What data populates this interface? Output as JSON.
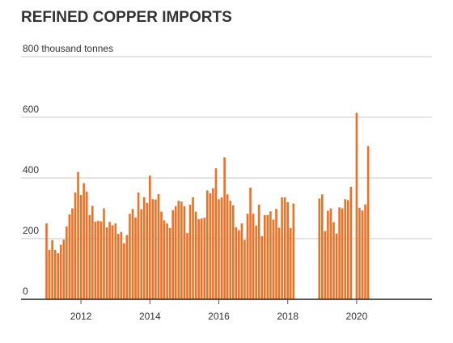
{
  "chart_data": {
    "type": "bar",
    "title": "REFINED COPPER IMPORTS",
    "ylabel": "thousand tonnes",
    "ylim": [
      0,
      800
    ],
    "yticks": [
      {
        "value": 0,
        "label": "0"
      },
      {
        "value": 200,
        "label": "200"
      },
      {
        "value": 400,
        "label": "400"
      },
      {
        "value": 600,
        "label": "600"
      },
      {
        "value": 800,
        "label": "800 thousand tonnes"
      }
    ],
    "xticks": [
      {
        "date": "2012-01",
        "label": "2012"
      },
      {
        "date": "2014-01",
        "label": "2014"
      },
      {
        "date": "2016-01",
        "label": "2016"
      },
      {
        "date": "2018-01",
        "label": "2018"
      },
      {
        "date": "2020-01",
        "label": "2020"
      }
    ],
    "xlim": [
      "2011-01",
      "2021-12"
    ],
    "grid": true,
    "colors": {
      "bar": "#f26f22",
      "grid": "#c8c8c8",
      "axis": "#222222",
      "text": "#333333"
    },
    "series": [
      {
        "points": [
          {
            "x": "2011-01",
            "y": 250
          },
          {
            "x": "2011-02",
            "y": 163
          },
          {
            "x": "2011-03",
            "y": 195
          },
          {
            "x": "2011-04",
            "y": 163
          },
          {
            "x": "2011-05",
            "y": 152
          },
          {
            "x": "2011-06",
            "y": 180
          },
          {
            "x": "2011-07",
            "y": 197
          },
          {
            "x": "2011-08",
            "y": 240
          },
          {
            "x": "2011-09",
            "y": 280
          },
          {
            "x": "2011-10",
            "y": 300
          },
          {
            "x": "2011-11",
            "y": 352
          },
          {
            "x": "2011-12",
            "y": 420
          },
          {
            "x": "2012-01",
            "y": 344
          },
          {
            "x": "2012-02",
            "y": 383
          },
          {
            "x": "2012-03",
            "y": 355
          },
          {
            "x": "2012-04",
            "y": 278
          },
          {
            "x": "2012-05",
            "y": 308
          },
          {
            "x": "2012-06",
            "y": 256
          },
          {
            "x": "2012-07",
            "y": 259
          },
          {
            "x": "2012-08",
            "y": 257
          },
          {
            "x": "2012-09",
            "y": 300
          },
          {
            "x": "2012-10",
            "y": 237
          },
          {
            "x": "2012-11",
            "y": 255
          },
          {
            "x": "2012-12",
            "y": 244
          },
          {
            "x": "2013-01",
            "y": 250
          },
          {
            "x": "2013-02",
            "y": 216
          },
          {
            "x": "2013-03",
            "y": 222
          },
          {
            "x": "2013-04",
            "y": 185
          },
          {
            "x": "2013-05",
            "y": 212
          },
          {
            "x": "2013-06",
            "y": 282
          },
          {
            "x": "2013-07",
            "y": 298
          },
          {
            "x": "2013-08",
            "y": 270
          },
          {
            "x": "2013-09",
            "y": 352
          },
          {
            "x": "2013-10",
            "y": 297
          },
          {
            "x": "2013-11",
            "y": 337
          },
          {
            "x": "2013-12",
            "y": 318
          },
          {
            "x": "2014-01",
            "y": 408
          },
          {
            "x": "2014-02",
            "y": 330
          },
          {
            "x": "2014-03",
            "y": 329
          },
          {
            "x": "2014-04",
            "y": 347
          },
          {
            "x": "2014-05",
            "y": 289
          },
          {
            "x": "2014-06",
            "y": 260
          },
          {
            "x": "2014-07",
            "y": 250
          },
          {
            "x": "2014-08",
            "y": 235
          },
          {
            "x": "2014-09",
            "y": 294
          },
          {
            "x": "2014-10",
            "y": 307
          },
          {
            "x": "2014-11",
            "y": 325
          },
          {
            "x": "2014-12",
            "y": 322
          },
          {
            "x": "2015-01",
            "y": 307
          },
          {
            "x": "2015-02",
            "y": 218
          },
          {
            "x": "2015-03",
            "y": 312
          },
          {
            "x": "2015-04",
            "y": 337
          },
          {
            "x": "2015-05",
            "y": 289
          },
          {
            "x": "2015-06",
            "y": 264
          },
          {
            "x": "2015-07",
            "y": 267
          },
          {
            "x": "2015-08",
            "y": 269
          },
          {
            "x": "2015-09",
            "y": 359
          },
          {
            "x": "2015-10",
            "y": 350
          },
          {
            "x": "2015-11",
            "y": 366
          },
          {
            "x": "2015-12",
            "y": 432
          },
          {
            "x": "2016-01",
            "y": 330
          },
          {
            "x": "2016-02",
            "y": 336
          },
          {
            "x": "2016-03",
            "y": 468
          },
          {
            "x": "2016-04",
            "y": 346
          },
          {
            "x": "2016-05",
            "y": 325
          },
          {
            "x": "2016-06",
            "y": 310
          },
          {
            "x": "2016-07",
            "y": 238
          },
          {
            "x": "2016-08",
            "y": 228
          },
          {
            "x": "2016-09",
            "y": 250
          },
          {
            "x": "2016-10",
            "y": 196
          },
          {
            "x": "2016-11",
            "y": 282
          },
          {
            "x": "2016-12",
            "y": 368
          },
          {
            "x": "2017-01",
            "y": 282
          },
          {
            "x": "2017-02",
            "y": 243
          },
          {
            "x": "2017-03",
            "y": 312
          },
          {
            "x": "2017-04",
            "y": 208
          },
          {
            "x": "2017-05",
            "y": 278
          },
          {
            "x": "2017-06",
            "y": 278
          },
          {
            "x": "2017-07",
            "y": 290
          },
          {
            "x": "2017-08",
            "y": 263
          },
          {
            "x": "2017-09",
            "y": 298
          },
          {
            "x": "2017-10",
            "y": 236
          },
          {
            "x": "2017-11",
            "y": 336
          },
          {
            "x": "2017-12",
            "y": 336
          },
          {
            "x": "2018-01",
            "y": 320
          },
          {
            "x": "2018-02",
            "y": 235
          },
          {
            "x": "2018-03",
            "y": 316
          },
          {
            "x": "2018-12",
            "y": 332
          },
          {
            "x": "2019-01",
            "y": 346
          },
          {
            "x": "2019-02",
            "y": 225
          },
          {
            "x": "2019-03",
            "y": 292
          },
          {
            "x": "2019-04",
            "y": 300
          },
          {
            "x": "2019-05",
            "y": 254
          },
          {
            "x": "2019-06",
            "y": 217
          },
          {
            "x": "2019-07",
            "y": 303
          },
          {
            "x": "2019-08",
            "y": 300
          },
          {
            "x": "2019-09",
            "y": 330
          },
          {
            "x": "2019-10",
            "y": 327
          },
          {
            "x": "2019-11",
            "y": 371
          },
          {
            "x": "2020-01",
            "y": 615
          },
          {
            "x": "2020-02",
            "y": 302
          },
          {
            "x": "2020-03",
            "y": 293
          },
          {
            "x": "2020-04",
            "y": 313
          },
          {
            "x": "2020-05",
            "y": 505
          }
        ]
      }
    ]
  }
}
